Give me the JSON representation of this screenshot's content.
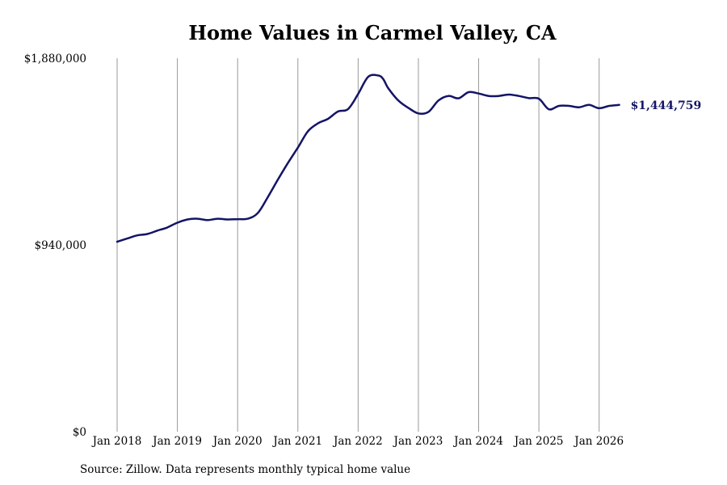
{
  "title": "Home Values in Carmel Valley, CA",
  "source": "Source: Zillow. Data represents monthly typical home value",
  "colors": {
    "line": "#141466",
    "grid": "#999999",
    "end_label": "#141466"
  },
  "chart_data": {
    "type": "line",
    "title": "Home Values in Carmel Valley, CA",
    "xlabel": "",
    "ylabel": "",
    "ylim": [
      0,
      1880000
    ],
    "y_ticks": [
      {
        "value": 0,
        "label": "$0"
      },
      {
        "value": 940000,
        "label": "$940,000"
      },
      {
        "value": 1880000,
        "label": "$1,880,000"
      }
    ],
    "x_ticks": [
      {
        "value": "2018-01",
        "label": "Jan 2018"
      },
      {
        "value": "2019-01",
        "label": "Jan 2019"
      },
      {
        "value": "2020-01",
        "label": "Jan 2020"
      },
      {
        "value": "2021-01",
        "label": "Jan 2021"
      },
      {
        "value": "2022-01",
        "label": "Jan 2022"
      },
      {
        "value": "2023-01",
        "label": "Jan 2023"
      },
      {
        "value": "2024-01",
        "label": "Jan 2024"
      },
      {
        "value": "2025-01",
        "label": "Jan 2025"
      },
      {
        "value": "2026-01",
        "label": "Jan 2026"
      }
    ],
    "xlim": [
      "2018-01",
      "2026-07"
    ],
    "grid": "vertical",
    "legend": "none",
    "end_label": "$1,444,759",
    "series": [
      {
        "x": [
          "2018-01",
          "2018-03",
          "2018-05",
          "2018-07",
          "2018-09",
          "2018-11",
          "2019-01",
          "2019-03",
          "2019-05",
          "2019-07",
          "2019-09",
          "2019-11",
          "2020-01",
          "2020-03",
          "2020-05",
          "2020-07",
          "2020-09",
          "2020-11",
          "2021-01",
          "2021-03",
          "2021-05",
          "2021-07",
          "2021-09",
          "2021-11",
          "2022-01",
          "2022-03",
          "2022-05",
          "2022-06",
          "2022-07",
          "2022-09",
          "2022-11",
          "2023-01",
          "2023-03",
          "2023-05",
          "2023-07",
          "2023-09",
          "2023-11",
          "2024-01",
          "2024-03",
          "2024-05",
          "2024-07",
          "2024-09",
          "2024-11",
          "2025-01",
          "2025-03",
          "2025-05",
          "2025-07",
          "2025-09",
          "2025-11",
          "2026-01",
          "2026-03",
          "2026-05",
          "2026-07"
        ],
        "values": [
          956000,
          972000,
          988000,
          995000,
          1012000,
          1028000,
          1052000,
          1068000,
          1072000,
          1065000,
          1072000,
          1068000,
          1070000,
          1072000,
          1100000,
          1180000,
          1268000,
          1352000,
          1430000,
          1512000,
          1552000,
          1575000,
          1612000,
          1624000,
          1700000,
          1786000,
          1793000,
          1775000,
          1729000,
          1667000,
          1630000,
          1602000,
          1610000,
          1667000,
          1690000,
          1678000,
          1709000,
          1702000,
          1690000,
          1690000,
          1697000,
          1690000,
          1679000,
          1676000,
          1623000,
          1640000,
          1640000,
          1633000,
          1644759,
          1628000,
          1640000,
          1644759,
          1444759
        ]
      }
    ]
  }
}
